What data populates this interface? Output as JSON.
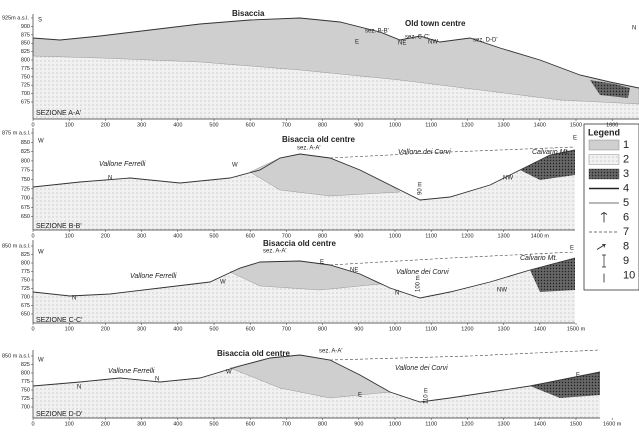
{
  "sections": [
    {
      "name": "SEZIONE A-A'",
      "y_labels": [
        "925m a.s.l.",
        "900",
        "875",
        "850",
        "825",
        "800",
        "775",
        "750",
        "725",
        "700",
        "675"
      ],
      "x_labels": [
        "0",
        "100",
        "200",
        "300",
        "400",
        "500",
        "600",
        "700",
        "800",
        "900",
        "1000",
        "1100",
        "1200",
        "1300",
        "1400",
        "1500",
        "1600"
      ],
      "annotations": [
        "S",
        "N",
        "Bisaccia",
        "sez. B-B'",
        "Old town centre",
        "E",
        "NE",
        "sez. C-C'",
        "NW",
        "sez. D-D'"
      ]
    },
    {
      "name": "SEZIONE B-B'",
      "y_labels": [
        "875 m a.s.l.",
        "850",
        "825",
        "800",
        "775",
        "750",
        "725",
        "700",
        "675",
        "650"
      ],
      "x_labels": [
        "0",
        "100",
        "200",
        "300",
        "400",
        "500",
        "600",
        "700",
        "800",
        "900",
        "1000",
        "1100",
        "1200",
        "1300",
        "1400 m"
      ],
      "annotations": [
        "W",
        "E",
        "Bisaccia old centre",
        "sez. A-A'",
        "Vallone Ferrelli",
        "Vallone dei Corvi",
        "Calvario Mt.",
        "N",
        "W",
        "NW",
        "90 m"
      ]
    },
    {
      "name": "SEZIONE C-C'",
      "y_labels": [
        "850 m a.s.l.",
        "825",
        "800",
        "775",
        "750",
        "725",
        "700",
        "675",
        "650"
      ],
      "x_labels": [
        "0",
        "100",
        "200",
        "300",
        "400",
        "500",
        "600",
        "700",
        "800",
        "900",
        "1000",
        "1100",
        "1200",
        "1300",
        "1400",
        "1500 m"
      ],
      "annotations": [
        "W",
        "E",
        "Bisaccia old centre",
        "sez. A-A'",
        "Vallone Ferrelli",
        "Vallone dei Corvi",
        "Calvario Mt.",
        "N",
        "N",
        "W",
        "E",
        "NE",
        "NW",
        "100 m"
      ]
    },
    {
      "name": "SEZIONE D-D'",
      "y_labels": [
        "850 m a.s.l.",
        "825",
        "800",
        "775",
        "750",
        "725",
        "700"
      ],
      "x_labels": [
        "0",
        "100",
        "200",
        "300",
        "400",
        "500",
        "600",
        "700",
        "800",
        "900",
        "1000",
        "1100",
        "1200",
        "1300",
        "1400",
        "1500",
        "1600 m"
      ],
      "annotations": [
        "W",
        "E",
        "Bisaccia old centre",
        "sez. A-A'",
        "Vallone Ferrelli",
        "Vallone dei Corvi",
        "N",
        "N",
        "W",
        "E",
        "110 m"
      ]
    }
  ],
  "legend": {
    "title": "Legend",
    "items": [
      "1",
      "2",
      "3",
      "4",
      "5",
      "6",
      "7",
      "8",
      "9",
      "10"
    ]
  }
}
